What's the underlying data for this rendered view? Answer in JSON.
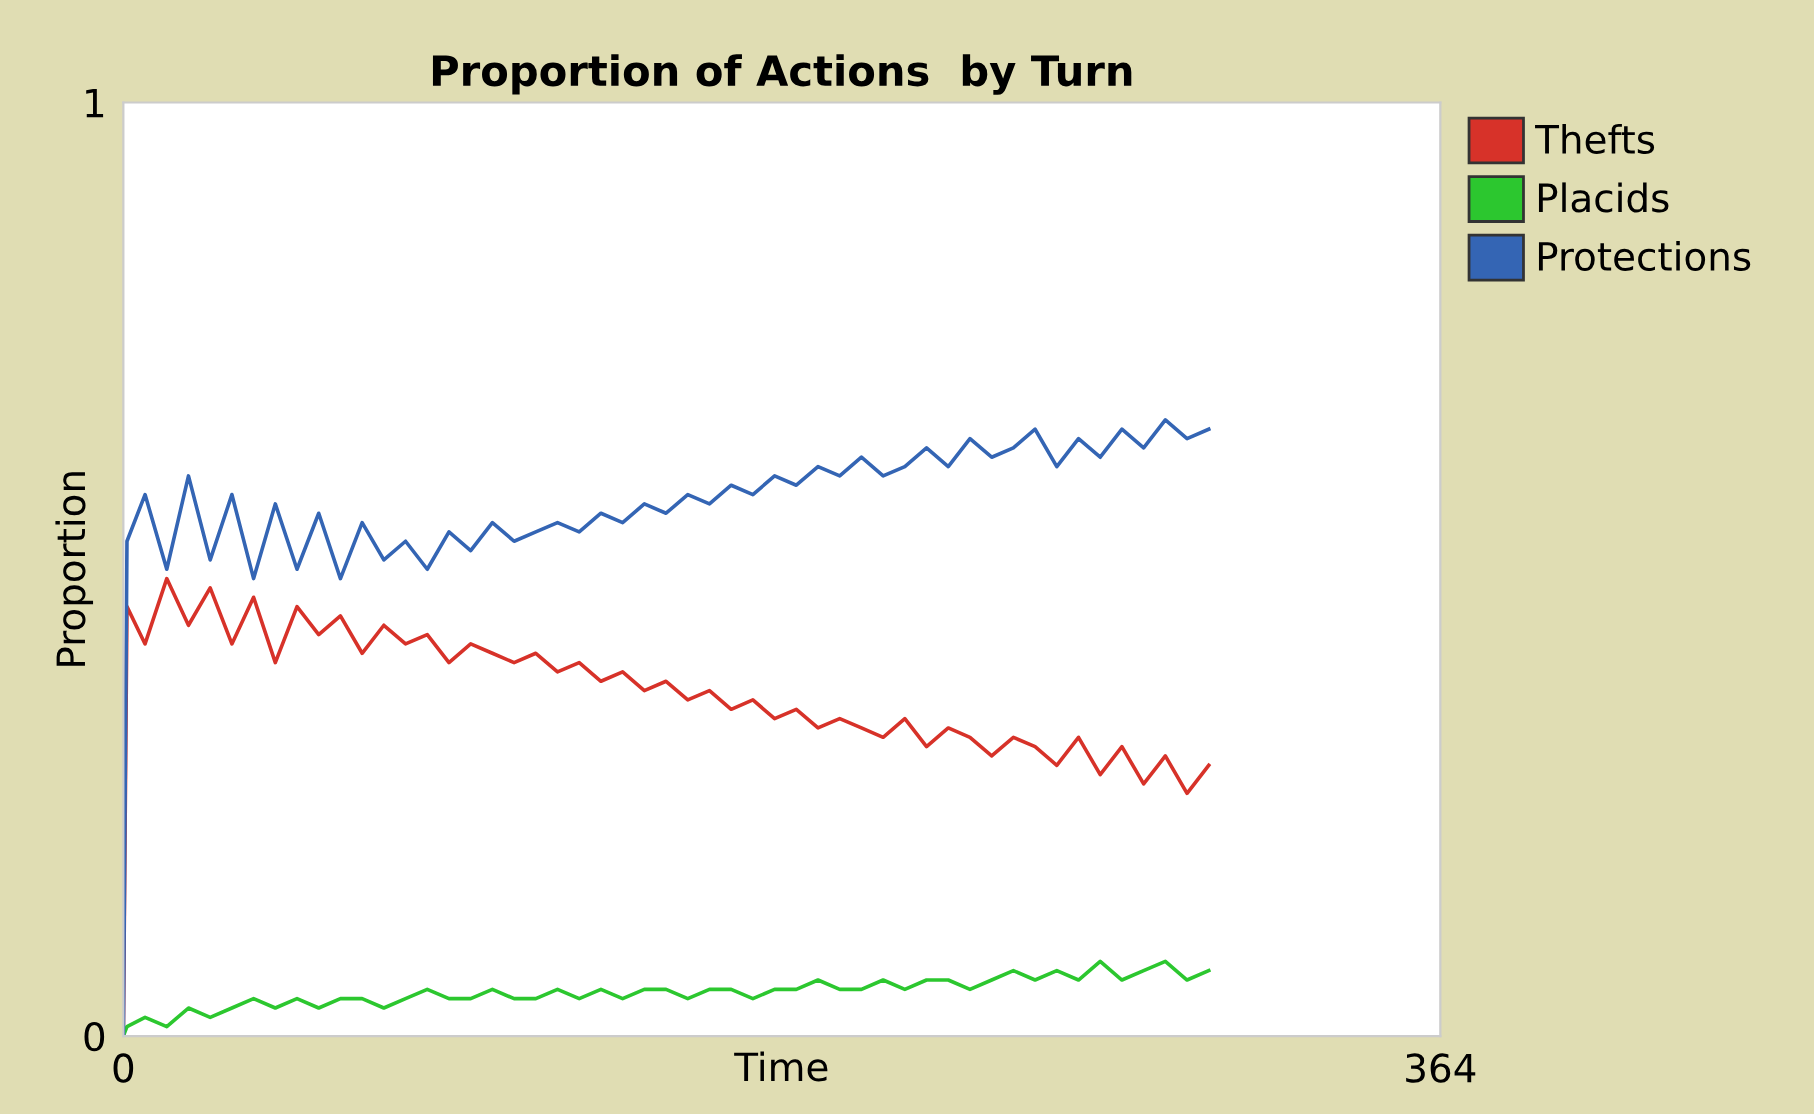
{
  "chart_data": {
    "type": "line",
    "title": "Proportion of Actions  by Turn",
    "xlabel": "Time",
    "ylabel": "Proportion",
    "x": [
      0,
      1,
      6,
      12,
      18,
      24,
      30,
      36,
      42,
      48,
      54,
      60,
      66,
      72,
      78,
      84,
      90,
      96,
      102,
      108,
      114,
      120,
      126,
      132,
      138,
      144,
      150,
      156,
      162,
      168,
      174,
      180,
      186,
      192,
      198,
      204,
      210,
      216,
      222,
      228,
      234,
      240,
      246,
      252,
      258,
      264,
      270,
      276,
      282,
      288,
      294,
      300
    ],
    "series": [
      {
        "name": "Thefts",
        "color": "#d73229",
        "values": [
          0,
          0.46,
          0.42,
          0.49,
          0.44,
          0.48,
          0.42,
          0.47,
          0.4,
          0.46,
          0.43,
          0.45,
          0.41,
          0.44,
          0.42,
          0.43,
          0.4,
          0.42,
          0.41,
          0.4,
          0.41,
          0.39,
          0.4,
          0.38,
          0.39,
          0.37,
          0.38,
          0.36,
          0.37,
          0.35,
          0.36,
          0.34,
          0.35,
          0.33,
          0.34,
          0.33,
          0.32,
          0.34,
          0.31,
          0.33,
          0.32,
          0.3,
          0.32,
          0.31,
          0.29,
          0.32,
          0.28,
          0.31,
          0.27,
          0.3,
          0.26,
          0.29
        ]
      },
      {
        "name": "Placids",
        "color": "#2cc72f",
        "values": [
          0,
          0.01,
          0.02,
          0.01,
          0.03,
          0.02,
          0.03,
          0.04,
          0.03,
          0.04,
          0.03,
          0.04,
          0.04,
          0.03,
          0.04,
          0.05,
          0.04,
          0.04,
          0.05,
          0.04,
          0.04,
          0.05,
          0.04,
          0.05,
          0.04,
          0.05,
          0.05,
          0.04,
          0.05,
          0.05,
          0.04,
          0.05,
          0.05,
          0.06,
          0.05,
          0.05,
          0.06,
          0.05,
          0.06,
          0.06,
          0.05,
          0.06,
          0.07,
          0.06,
          0.07,
          0.06,
          0.08,
          0.06,
          0.07,
          0.08,
          0.06,
          0.07
        ]
      },
      {
        "name": "Protections",
        "color": "#3465b4",
        "values": [
          0,
          0.53,
          0.58,
          0.5,
          0.6,
          0.51,
          0.58,
          0.49,
          0.57,
          0.5,
          0.56,
          0.49,
          0.55,
          0.51,
          0.53,
          0.5,
          0.54,
          0.52,
          0.55,
          0.53,
          0.54,
          0.55,
          0.54,
          0.56,
          0.55,
          0.57,
          0.56,
          0.58,
          0.57,
          0.59,
          0.58,
          0.6,
          0.59,
          0.61,
          0.6,
          0.62,
          0.6,
          0.61,
          0.63,
          0.61,
          0.64,
          0.62,
          0.63,
          0.65,
          0.61,
          0.64,
          0.62,
          0.65,
          0.63,
          0.66,
          0.64,
          0.65
        ]
      }
    ],
    "xlim": [
      0,
      364
    ],
    "xticks": [
      0,
      364
    ],
    "ylim": [
      0,
      1
    ],
    "yticks": [
      0,
      1
    ],
    "grid": false,
    "legend": "right"
  }
}
